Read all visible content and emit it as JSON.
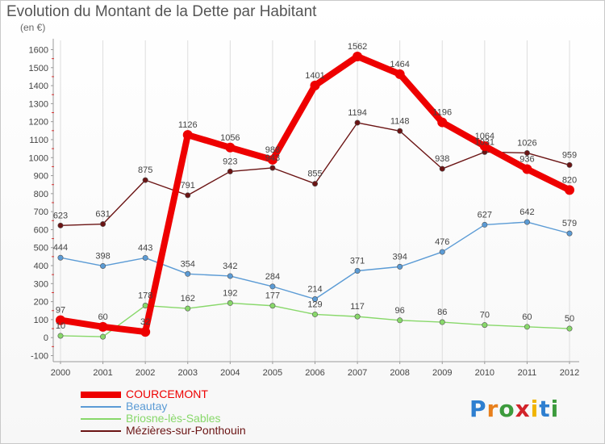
{
  "header": {
    "title": "Evolution du Montant de la Dette par Habitant",
    "subtitle": "(en €)"
  },
  "logo": {
    "text": "Proxiti"
  },
  "chart_data": {
    "type": "line",
    "title": "Evolution du Montant de la Dette par Habitant",
    "subtitle": "(en €)",
    "xlabel": "",
    "ylabel": "",
    "x": [
      2000,
      2001,
      2002,
      2003,
      2004,
      2005,
      2006,
      2007,
      2008,
      2009,
      2010,
      2011,
      2012
    ],
    "yticks": [
      -100,
      0,
      100,
      200,
      300,
      400,
      500,
      600,
      700,
      800,
      900,
      1000,
      1100,
      1200,
      1300,
      1400,
      1500,
      1600
    ],
    "ylim": [
      -100,
      1650
    ],
    "grid": "vertical",
    "legend_position": "bottom-left",
    "series": [
      {
        "name": "COURCEMONT",
        "color": "#ee0000",
        "values": [
          97,
          60,
          32,
          1126,
          1056,
          988,
          1401,
          1562,
          1464,
          1196,
          1064,
          936,
          820
        ]
      },
      {
        "name": "Beautay",
        "color": "#5b9bd5",
        "values": [
          444,
          398,
          443,
          354,
          342,
          284,
          214,
          371,
          394,
          476,
          627,
          642,
          579
        ]
      },
      {
        "name": "Briosne-lès-Sables",
        "color": "#88d86a",
        "values": [
          10,
          5,
          178,
          162,
          192,
          177,
          129,
          117,
          96,
          86,
          70,
          60,
          50
        ]
      },
      {
        "name": "Mézières-sur-Ponthouin",
        "color": "#6b1414",
        "values": [
          623,
          631,
          875,
          791,
          923,
          943,
          855,
          1194,
          1148,
          938,
          1031,
          1026,
          959
        ]
      }
    ],
    "data_labels": {
      "COURCEMONT": [
        "97",
        "60",
        "32",
        "1126",
        "1056",
        "988",
        "1401",
        "1562",
        "1464",
        "1196",
        "1064",
        "936",
        "820"
      ],
      "Beautay": [
        "444",
        "398",
        "443",
        "354",
        "342",
        "284",
        "214",
        "371",
        "394",
        "476",
        "627",
        "642",
        "579"
      ],
      "Briosne-lès-Sables": [
        "10",
        "",
        "178",
        "162",
        "192",
        "177",
        "129",
        "117",
        "96",
        "86",
        "70",
        "60",
        "50"
      ],
      "Mézières-sur-Ponthouin": [
        "623",
        "631",
        "875",
        "791",
        "923",
        "943",
        "855",
        "1194",
        "1148",
        "938",
        "1031",
        "1026",
        "959"
      ]
    }
  }
}
